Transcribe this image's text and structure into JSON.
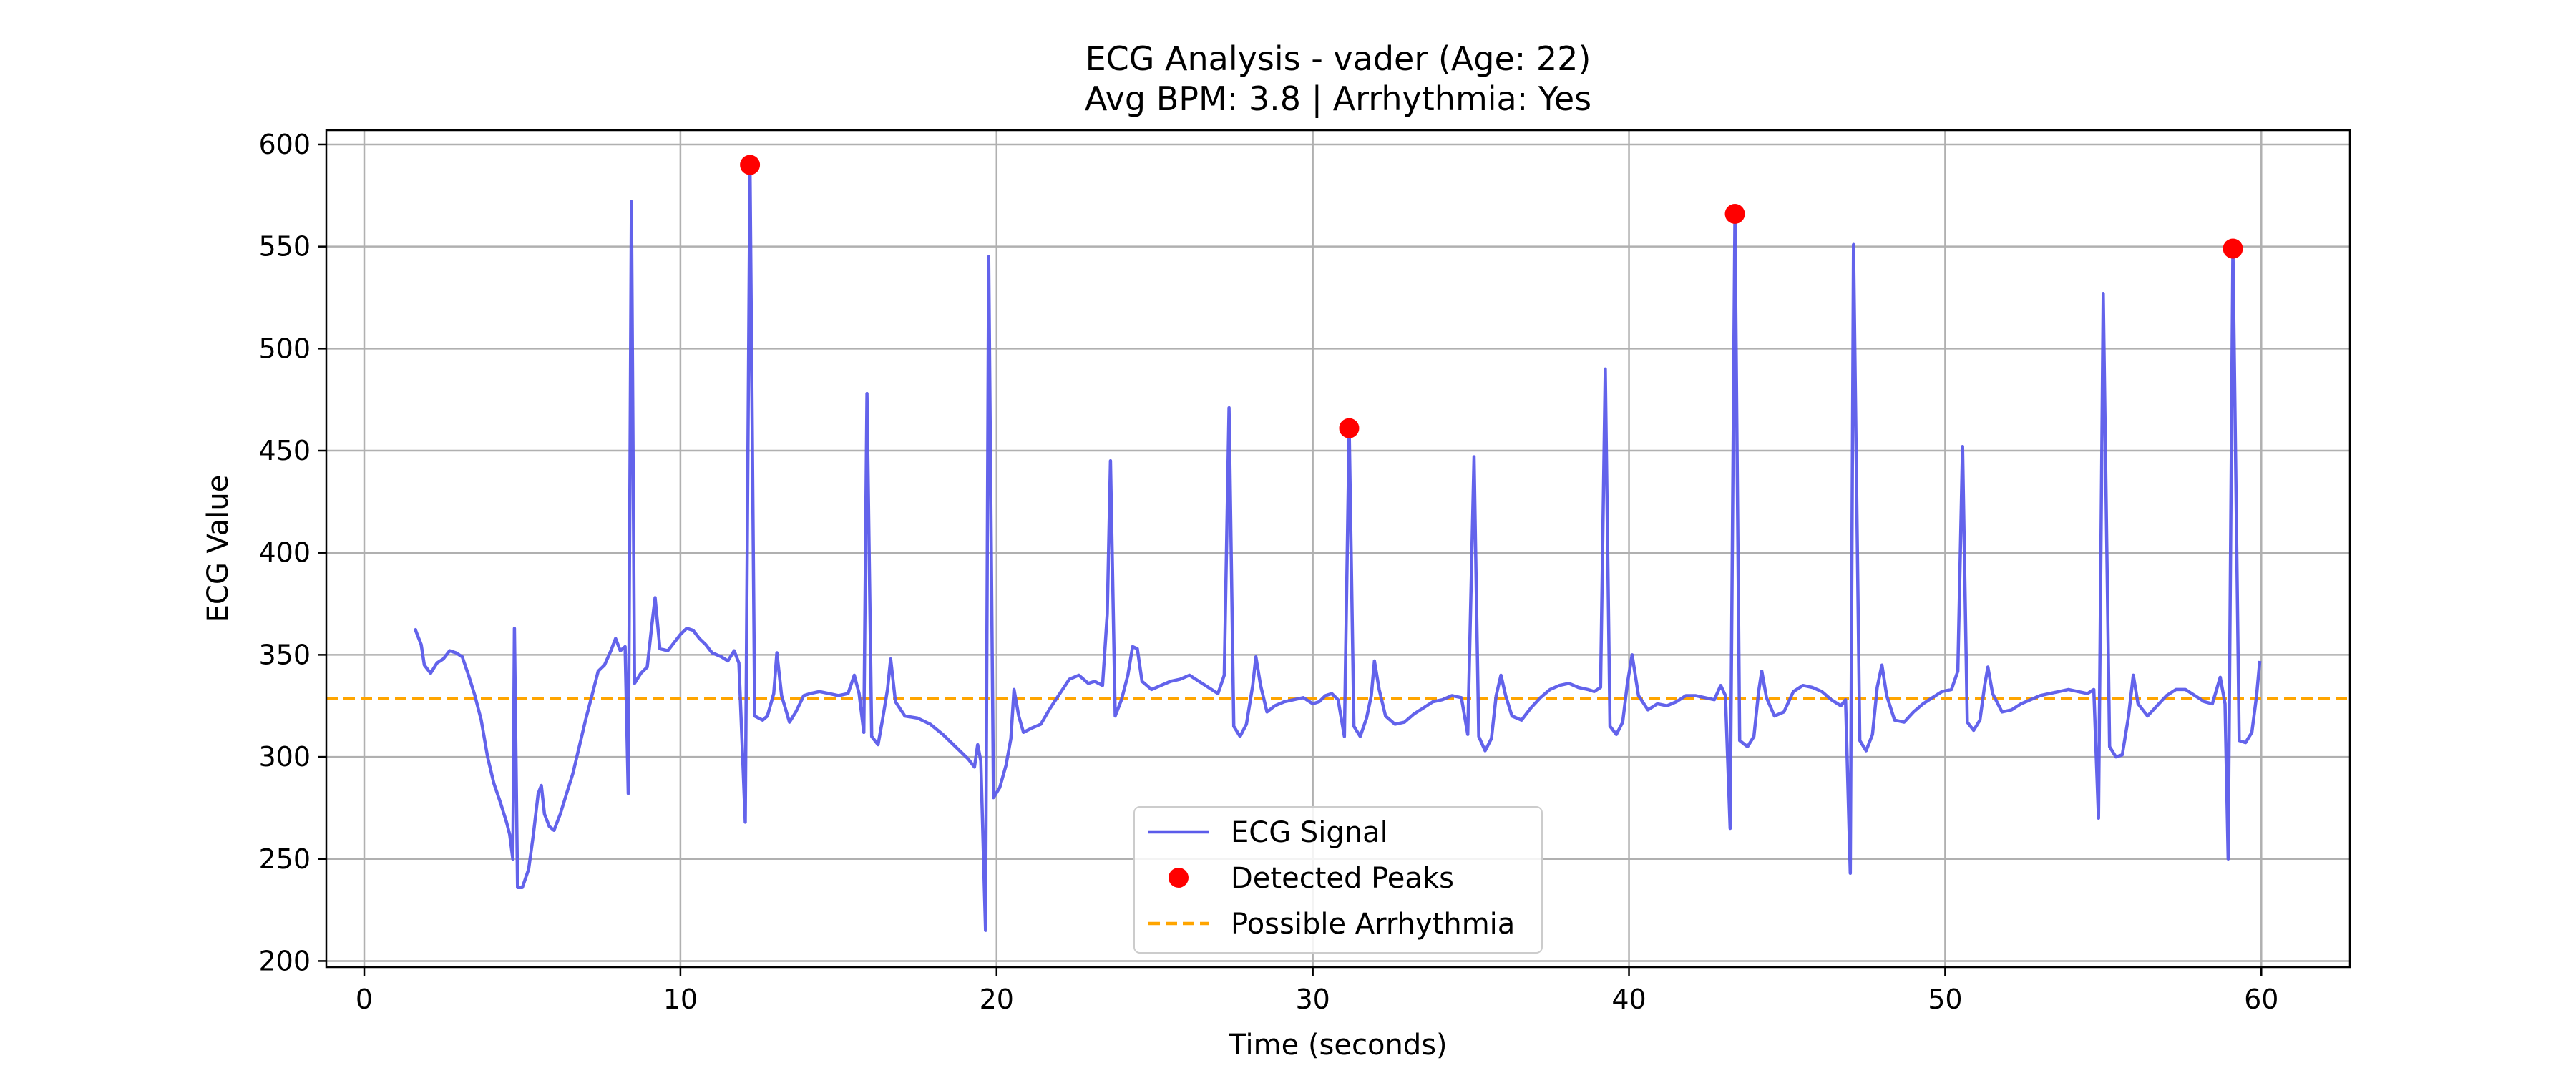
{
  "chart_data": {
    "type": "line",
    "title": "ECG Analysis - vader (Age: 22)",
    "subtitle": "Avg BPM: 3.8 | Arrhythmia: Yes",
    "xlabel": "Time (seconds)",
    "ylabel": "ECG Value",
    "xlim": [
      -1.2,
      62.8
    ],
    "ylim": [
      197,
      607
    ],
    "xticks": [
      0,
      10,
      20,
      30,
      40,
      50,
      60
    ],
    "yticks": [
      200,
      250,
      300,
      350,
      400,
      450,
      500,
      550,
      600
    ],
    "grid": true,
    "legend_position": "bottom-center",
    "colors": {
      "signal": "#5b5bea",
      "peaks": "#ff0000",
      "threshold": "#ffa500"
    },
    "series": [
      {
        "name": "ECG Signal",
        "kind": "line",
        "points": [
          [
            1.6,
            363
          ],
          [
            1.8,
            355
          ],
          [
            1.9,
            345
          ],
          [
            2.1,
            341
          ],
          [
            2.3,
            346
          ],
          [
            2.5,
            348
          ],
          [
            2.7,
            352
          ],
          [
            2.9,
            351
          ],
          [
            3.1,
            349
          ],
          [
            3.3,
            340
          ],
          [
            3.5,
            330
          ],
          [
            3.7,
            318
          ],
          [
            3.9,
            300
          ],
          [
            4.1,
            287
          ],
          [
            4.3,
            278
          ],
          [
            4.5,
            268
          ],
          [
            4.6,
            262
          ],
          [
            4.7,
            250
          ],
          [
            4.75,
            363
          ],
          [
            4.85,
            236
          ],
          [
            5.0,
            236
          ],
          [
            5.2,
            245
          ],
          [
            5.35,
            262
          ],
          [
            5.5,
            282
          ],
          [
            5.6,
            286
          ],
          [
            5.7,
            272
          ],
          [
            5.85,
            266
          ],
          [
            6.0,
            264
          ],
          [
            6.2,
            272
          ],
          [
            6.4,
            282
          ],
          [
            6.6,
            292
          ],
          [
            6.8,
            305
          ],
          [
            7.0,
            318
          ],
          [
            7.2,
            330
          ],
          [
            7.4,
            342
          ],
          [
            7.6,
            345
          ],
          [
            7.8,
            352
          ],
          [
            7.95,
            358
          ],
          [
            8.1,
            352
          ],
          [
            8.25,
            354
          ],
          [
            8.35,
            282
          ],
          [
            8.45,
            572
          ],
          [
            8.55,
            336
          ],
          [
            8.75,
            341
          ],
          [
            8.95,
            344
          ],
          [
            9.1,
            365
          ],
          [
            9.2,
            378
          ],
          [
            9.35,
            353
          ],
          [
            9.6,
            352
          ],
          [
            9.8,
            356
          ],
          [
            10.0,
            360
          ],
          [
            10.2,
            363
          ],
          [
            10.4,
            362
          ],
          [
            10.6,
            358
          ],
          [
            10.8,
            355
          ],
          [
            11.0,
            351
          ],
          [
            11.3,
            349
          ],
          [
            11.5,
            347
          ],
          [
            11.7,
            352
          ],
          [
            11.85,
            346
          ],
          [
            12.05,
            268
          ],
          [
            12.2,
            590
          ],
          [
            12.35,
            320
          ],
          [
            12.6,
            318
          ],
          [
            12.75,
            320
          ],
          [
            12.95,
            331
          ],
          [
            13.05,
            351
          ],
          [
            13.2,
            330
          ],
          [
            13.45,
            317
          ],
          [
            13.65,
            322
          ],
          [
            13.9,
            330
          ],
          [
            14.1,
            331
          ],
          [
            14.4,
            332
          ],
          [
            14.7,
            331
          ],
          [
            15.0,
            330
          ],
          [
            15.3,
            331
          ],
          [
            15.5,
            340
          ],
          [
            15.65,
            331
          ],
          [
            15.8,
            312
          ],
          [
            15.9,
            478
          ],
          [
            16.05,
            310
          ],
          [
            16.25,
            306
          ],
          [
            16.4,
            319
          ],
          [
            16.55,
            333
          ],
          [
            16.65,
            348
          ],
          [
            16.8,
            327
          ],
          [
            17.1,
            320
          ],
          [
            17.5,
            319
          ],
          [
            17.9,
            316
          ],
          [
            18.3,
            311
          ],
          [
            18.7,
            305
          ],
          [
            19.1,
            299
          ],
          [
            19.3,
            295
          ],
          [
            19.4,
            306
          ],
          [
            19.5,
            298
          ],
          [
            19.65,
            215
          ],
          [
            19.75,
            545
          ],
          [
            19.9,
            280
          ],
          [
            20.1,
            285
          ],
          [
            20.3,
            296
          ],
          [
            20.45,
            309
          ],
          [
            20.55,
            333
          ],
          [
            20.7,
            320
          ],
          [
            20.85,
            312
          ],
          [
            21.1,
            314
          ],
          [
            21.4,
            316
          ],
          [
            21.7,
            324
          ],
          [
            22.0,
            331
          ],
          [
            22.3,
            338
          ],
          [
            22.6,
            340
          ],
          [
            22.9,
            336
          ],
          [
            23.1,
            337
          ],
          [
            23.35,
            335
          ],
          [
            23.5,
            370
          ],
          [
            23.6,
            445
          ],
          [
            23.75,
            320
          ],
          [
            23.95,
            328
          ],
          [
            24.15,
            340
          ],
          [
            24.3,
            354
          ],
          [
            24.45,
            353
          ],
          [
            24.6,
            337
          ],
          [
            24.9,
            333
          ],
          [
            25.2,
            335
          ],
          [
            25.5,
            337
          ],
          [
            25.8,
            338
          ],
          [
            26.1,
            340
          ],
          [
            26.4,
            337
          ],
          [
            26.7,
            334
          ],
          [
            27.0,
            331
          ],
          [
            27.2,
            340
          ],
          [
            27.35,
            471
          ],
          [
            27.5,
            315
          ],
          [
            27.7,
            310
          ],
          [
            27.9,
            316
          ],
          [
            28.1,
            335
          ],
          [
            28.2,
            349
          ],
          [
            28.35,
            335
          ],
          [
            28.55,
            322
          ],
          [
            28.8,
            325
          ],
          [
            29.1,
            327
          ],
          [
            29.4,
            328
          ],
          [
            29.7,
            329
          ],
          [
            30.0,
            326
          ],
          [
            30.2,
            327
          ],
          [
            30.4,
            330
          ],
          [
            30.6,
            331
          ],
          [
            30.8,
            328
          ],
          [
            31.0,
            310
          ],
          [
            31.15,
            461
          ],
          [
            31.3,
            315
          ],
          [
            31.5,
            310
          ],
          [
            31.7,
            319
          ],
          [
            31.85,
            330
          ],
          [
            31.95,
            347
          ],
          [
            32.1,
            333
          ],
          [
            32.3,
            320
          ],
          [
            32.6,
            316
          ],
          [
            32.9,
            317
          ],
          [
            33.2,
            321
          ],
          [
            33.5,
            324
          ],
          [
            33.8,
            327
          ],
          [
            34.1,
            328
          ],
          [
            34.4,
            330
          ],
          [
            34.7,
            329
          ],
          [
            34.9,
            311
          ],
          [
            35.1,
            447
          ],
          [
            35.25,
            310
          ],
          [
            35.45,
            303
          ],
          [
            35.65,
            309
          ],
          [
            35.8,
            330
          ],
          [
            35.95,
            340
          ],
          [
            36.1,
            330
          ],
          [
            36.3,
            320
          ],
          [
            36.6,
            318
          ],
          [
            36.9,
            324
          ],
          [
            37.2,
            329
          ],
          [
            37.5,
            333
          ],
          [
            37.8,
            335
          ],
          [
            38.1,
            336
          ],
          [
            38.4,
            334
          ],
          [
            38.7,
            333
          ],
          [
            38.9,
            332
          ],
          [
            39.1,
            334
          ],
          [
            39.25,
            490
          ],
          [
            39.4,
            315
          ],
          [
            39.6,
            311
          ],
          [
            39.8,
            317
          ],
          [
            39.95,
            336
          ],
          [
            40.1,
            350
          ],
          [
            40.3,
            330
          ],
          [
            40.6,
            323
          ],
          [
            40.9,
            326
          ],
          [
            41.2,
            325
          ],
          [
            41.5,
            327
          ],
          [
            41.8,
            330
          ],
          [
            42.1,
            330
          ],
          [
            42.4,
            329
          ],
          [
            42.7,
            328
          ],
          [
            42.9,
            335
          ],
          [
            43.05,
            330
          ],
          [
            43.2,
            265
          ],
          [
            43.35,
            566
          ],
          [
            43.5,
            308
          ],
          [
            43.75,
            305
          ],
          [
            43.95,
            310
          ],
          [
            44.1,
            332
          ],
          [
            44.2,
            342
          ],
          [
            44.35,
            329
          ],
          [
            44.6,
            320
          ],
          [
            44.9,
            322
          ],
          [
            45.2,
            332
          ],
          [
            45.5,
            335
          ],
          [
            45.8,
            334
          ],
          [
            46.1,
            332
          ],
          [
            46.4,
            328
          ],
          [
            46.7,
            325
          ],
          [
            46.85,
            328
          ],
          [
            47.0,
            243
          ],
          [
            47.1,
            551
          ],
          [
            47.3,
            308
          ],
          [
            47.5,
            303
          ],
          [
            47.7,
            311
          ],
          [
            47.85,
            334
          ],
          [
            48.0,
            345
          ],
          [
            48.15,
            330
          ],
          [
            48.4,
            318
          ],
          [
            48.7,
            317
          ],
          [
            49.0,
            322
          ],
          [
            49.3,
            326
          ],
          [
            49.6,
            329
          ],
          [
            49.9,
            332
          ],
          [
            50.2,
            333
          ],
          [
            50.4,
            342
          ],
          [
            50.55,
            452
          ],
          [
            50.7,
            317
          ],
          [
            50.9,
            313
          ],
          [
            51.1,
            318
          ],
          [
            51.25,
            335
          ],
          [
            51.35,
            344
          ],
          [
            51.5,
            331
          ],
          [
            51.8,
            322
          ],
          [
            52.1,
            323
          ],
          [
            52.4,
            326
          ],
          [
            52.7,
            328
          ],
          [
            53.0,
            330
          ],
          [
            53.3,
            331
          ],
          [
            53.6,
            332
          ],
          [
            53.9,
            333
          ],
          [
            54.2,
            332
          ],
          [
            54.5,
            331
          ],
          [
            54.7,
            333
          ],
          [
            54.85,
            270
          ],
          [
            55.0,
            527
          ],
          [
            55.2,
            305
          ],
          [
            55.4,
            300
          ],
          [
            55.6,
            301
          ],
          [
            55.8,
            320
          ],
          [
            55.95,
            340
          ],
          [
            56.1,
            326
          ],
          [
            56.4,
            320
          ],
          [
            56.7,
            325
          ],
          [
            57.0,
            330
          ],
          [
            57.3,
            333
          ],
          [
            57.6,
            333
          ],
          [
            57.9,
            330
          ],
          [
            58.2,
            327
          ],
          [
            58.45,
            326
          ],
          [
            58.7,
            339
          ],
          [
            58.85,
            326
          ],
          [
            58.95,
            250
          ],
          [
            59.1,
            549
          ],
          [
            59.3,
            308
          ],
          [
            59.5,
            307
          ],
          [
            59.7,
            312
          ],
          [
            59.85,
            330
          ],
          [
            59.95,
            347
          ]
        ]
      },
      {
        "name": "Detected Peaks",
        "kind": "scatter",
        "points": [
          [
            12.2,
            590
          ],
          [
            31.15,
            461
          ],
          [
            43.35,
            566
          ],
          [
            59.1,
            549
          ]
        ]
      },
      {
        "name": "Possible Arrhythmia",
        "kind": "hline",
        "y": 328.5
      }
    ]
  }
}
